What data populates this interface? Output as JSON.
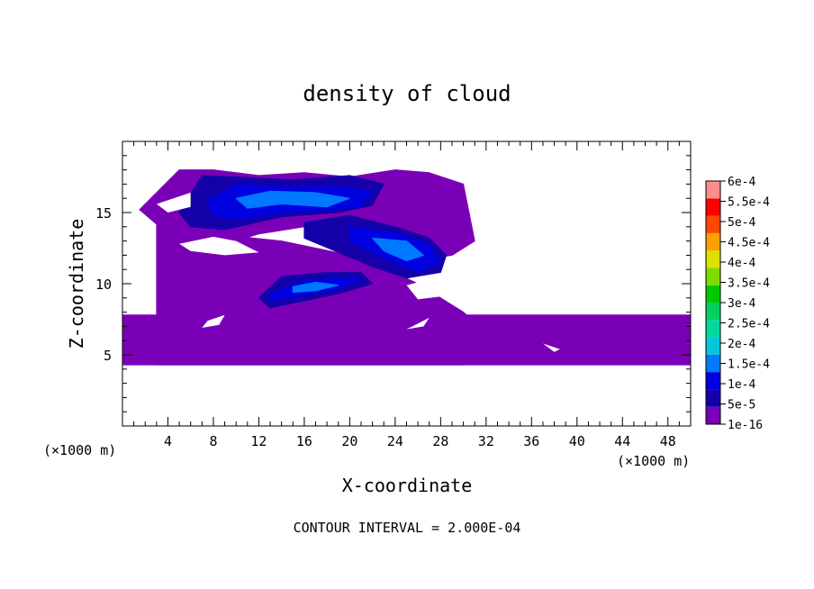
{
  "chart_data": {
    "type": "heatmap",
    "title": "density of cloud",
    "xlabel": "X-coordinate",
    "ylabel": "Z-coordinate",
    "x_unit_left": "(×1000 m)",
    "x_unit_right": "(×1000 m)",
    "xlim": [
      0,
      50
    ],
    "ylim": [
      0,
      20
    ],
    "x_ticks": [
      4,
      8,
      12,
      16,
      20,
      24,
      28,
      32,
      36,
      40,
      44,
      48
    ],
    "y_ticks": [
      5,
      10,
      15
    ],
    "footer": "CONTOUR INTERVAL = 2.000E-04",
    "colorbar": {
      "levels": [
        "1e-16",
        "5e-5",
        "1e-4",
        "1.5e-4",
        "2e-4",
        "2.5e-4",
        "3e-4",
        "3.5e-4",
        "4e-4",
        "4.5e-4",
        "5e-4",
        "5.5e-4",
        "6e-4"
      ],
      "colors": [
        "#7a00b8",
        "#1400a8",
        "#0000e0",
        "#0078ff",
        "#00c8d8",
        "#00d8a0",
        "#00d060",
        "#00c800",
        "#80dc00",
        "#e0e000",
        "#ffa000",
        "#ff4800",
        "#ff0000",
        "#ff8c8c"
      ]
    },
    "regions": [
      {
        "level": 0,
        "x": [
          3,
          5,
          9,
          15,
          22,
          30,
          33,
          30,
          26,
          22,
          20,
          14,
          8,
          5,
          3
        ],
        "z": [
          4.3,
          4.3,
          4.3,
          4.3,
          4.3,
          4.3,
          6.0,
          8.0,
          10.0,
          11.5,
          12.0,
          13.0,
          13.5,
          14.5,
          15.0
        ]
      },
      {
        "level": 0,
        "x": [
          0,
          50,
          50,
          0
        ],
        "z": [
          4.3,
          4.3,
          7.8,
          7.8
        ]
      },
      {
        "level": 0,
        "x": [
          1.5,
          5,
          8,
          12,
          16,
          20,
          24,
          27,
          30,
          31,
          29,
          25,
          20,
          16,
          12,
          8,
          6,
          4
        ],
        "z": [
          15.2,
          18.0,
          18.0,
          17.6,
          17.8,
          17.5,
          18.0,
          17.8,
          17.0,
          13.0,
          12.0,
          11.5,
          12.5,
          14.0,
          13.5,
          12.5,
          12.0,
          13.5
        ]
      },
      {
        "level": 0,
        "x": [
          10,
          14,
          20,
          24,
          26,
          22,
          18,
          14,
          10
        ],
        "z": [
          10.0,
          11.2,
          11.4,
          10.0,
          8.5,
          7.6,
          7.2,
          7.6,
          8.5
        ]
      },
      {
        "level": 1,
        "x": [
          5,
          7,
          10,
          15,
          20,
          23,
          22,
          19,
          14,
          9,
          6
        ],
        "z": [
          15.0,
          17.6,
          17.5,
          17.3,
          17.6,
          17.0,
          15.5,
          15.0,
          14.7,
          13.8,
          14.0
        ]
      },
      {
        "level": 1,
        "x": [
          16,
          20,
          24,
          27,
          28.5,
          28,
          25,
          22,
          19,
          16
        ],
        "z": [
          14.3,
          14.8,
          14.0,
          13.2,
          12.0,
          10.8,
          10.4,
          11.2,
          12.2,
          13.2
        ]
      },
      {
        "level": 1,
        "x": [
          12,
          14,
          18,
          21,
          22,
          19,
          16,
          13
        ],
        "z": [
          9.0,
          10.5,
          10.8,
          10.8,
          10.0,
          9.3,
          8.8,
          8.3
        ]
      },
      {
        "level": 2,
        "x": [
          7.5,
          10,
          14,
          19,
          22,
          21,
          18,
          14,
          10,
          8
        ],
        "z": [
          15.8,
          17.0,
          16.8,
          16.8,
          16.5,
          15.4,
          15.2,
          15.0,
          14.5,
          14.8
        ]
      },
      {
        "level": 2,
        "x": [
          20,
          24,
          27,
          28,
          26,
          23,
          20
        ],
        "z": [
          14.0,
          13.6,
          12.8,
          11.5,
          10.8,
          11.8,
          13.0
        ]
      },
      {
        "level": 2,
        "x": [
          13,
          16,
          19,
          21,
          19,
          16,
          13
        ],
        "z": [
          9.3,
          10.2,
          10.4,
          10.3,
          9.6,
          9.2,
          8.8
        ]
      },
      {
        "level": 3,
        "x": [
          10,
          13,
          17,
          20,
          18,
          14,
          11
        ],
        "z": [
          16.0,
          16.5,
          16.4,
          16.0,
          15.4,
          15.6,
          15.3
        ]
      },
      {
        "level": 3,
        "x": [
          22,
          25,
          26.5,
          25,
          23
        ],
        "z": [
          13.2,
          13.0,
          12.0,
          11.6,
          12.3
        ]
      },
      {
        "level": 3,
        "x": [
          15,
          17,
          19,
          17,
          15
        ],
        "z": [
          9.8,
          10.1,
          9.9,
          9.5,
          9.4
        ]
      }
    ],
    "holes": [
      {
        "x": [
          5,
          8,
          10,
          12,
          9,
          6
        ],
        "z": [
          12.8,
          13.3,
          13.0,
          12.2,
          12.0,
          12.3
        ]
      },
      {
        "x": [
          3,
          6,
          6,
          4
        ],
        "z": [
          15.6,
          16.4,
          15.4,
          15.0
        ]
      },
      {
        "x": [
          25,
          27,
          28,
          26
        ],
        "z": [
          9.9,
          10.3,
          9.1,
          8.9
        ]
      },
      {
        "x": [
          7.5,
          9,
          8.5,
          7
        ],
        "z": [
          7.4,
          7.8,
          7.1,
          6.9
        ]
      },
      {
        "x": [
          25,
          27,
          26.5
        ],
        "z": [
          6.8,
          7.6,
          7.0
        ]
      },
      {
        "x": [
          37,
          38.5,
          38
        ],
        "z": [
          5.8,
          5.4,
          5.2
        ]
      }
    ]
  }
}
